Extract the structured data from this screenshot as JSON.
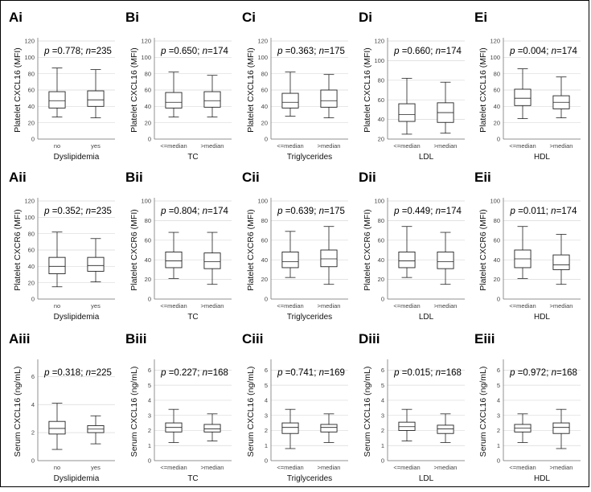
{
  "chart_data": [
    {
      "panel": "Ai",
      "type": "box",
      "ylabel": "Platelet CXCL16 (MFI)",
      "xlabel": "Dyslipidemia",
      "ylim": [
        0,
        120
      ],
      "yticks": [
        0,
        20,
        40,
        60,
        80,
        100,
        120
      ],
      "p": "0.778",
      "n": "235",
      "categories": [
        "no",
        "yes"
      ],
      "boxes": [
        {
          "min": 27,
          "q1": 38,
          "median": 47,
          "q3": 58,
          "max": 87
        },
        {
          "min": 26,
          "q1": 40,
          "median": 48,
          "q3": 59,
          "max": 85
        }
      ]
    },
    {
      "panel": "Bi",
      "type": "box",
      "ylabel": "Platelet CXCL16 (MFI)",
      "xlabel": "TC",
      "ylim": [
        0,
        120
      ],
      "yticks": [
        0,
        20,
        40,
        60,
        80,
        100,
        120
      ],
      "p": "0.650",
      "n": "174",
      "categories": [
        "<=median",
        ">median"
      ],
      "boxes": [
        {
          "min": 27,
          "q1": 38,
          "median": 45,
          "q3": 57,
          "max": 82
        },
        {
          "min": 27,
          "q1": 39,
          "median": 47,
          "q3": 58,
          "max": 78
        }
      ]
    },
    {
      "panel": "Ci",
      "type": "box",
      "ylabel": "Platelet CXCL16 (MFI)",
      "xlabel": "Triglycerides",
      "ylim": [
        0,
        120
      ],
      "yticks": [
        0,
        20,
        40,
        60,
        80,
        100,
        120
      ],
      "p": "0.363",
      "n": "175",
      "categories": [
        "<=median",
        ">median"
      ],
      "boxes": [
        {
          "min": 28,
          "q1": 38,
          "median": 45,
          "q3": 56,
          "max": 82
        },
        {
          "min": 26,
          "q1": 39,
          "median": 47,
          "q3": 60,
          "max": 79
        }
      ]
    },
    {
      "panel": "Di",
      "type": "box",
      "ylabel": "Platelet CXCL16 (MFI)",
      "xlabel": "LDL",
      "ylim": [
        20,
        120
      ],
      "yticks": [
        20,
        40,
        60,
        80,
        100,
        120
      ],
      "p": "0.660",
      "n": "174",
      "categories": [
        "<=median",
        ">median"
      ],
      "boxes": [
        {
          "min": 25,
          "q1": 38,
          "median": 45,
          "q3": 56,
          "max": 82
        },
        {
          "min": 26,
          "q1": 37,
          "median": 47,
          "q3": 57,
          "max": 78
        }
      ]
    },
    {
      "panel": "Ei",
      "type": "box",
      "ylabel": "Platelet CXCL16 (MFI)",
      "xlabel": "HDL",
      "ylim": [
        0,
        120
      ],
      "yticks": [
        0,
        20,
        40,
        60,
        80,
        100,
        120
      ],
      "p": "0.004",
      "n": "174",
      "categories": [
        "<=median",
        ">median"
      ],
      "boxes": [
        {
          "min": 25,
          "q1": 41,
          "median": 50,
          "q3": 61,
          "max": 86
        },
        {
          "min": 26,
          "q1": 37,
          "median": 45,
          "q3": 53,
          "max": 76
        }
      ]
    },
    {
      "panel": "Aii",
      "type": "box",
      "ylabel": "Platelet CXCR6 (MFI)",
      "xlabel": "Dyslipidemia",
      "ylim": [
        0,
        120
      ],
      "yticks": [
        0,
        20,
        40,
        60,
        80,
        100,
        120
      ],
      "p": "0.352",
      "n": "235",
      "categories": [
        "no",
        "yes"
      ],
      "boxes": [
        {
          "min": 15,
          "q1": 31,
          "median": 40,
          "q3": 51,
          "max": 82
        },
        {
          "min": 21,
          "q1": 34,
          "median": 41,
          "q3": 51,
          "max": 74
        }
      ]
    },
    {
      "panel": "Bii",
      "type": "box",
      "ylabel": "Platelet CXCR6 (MFI)",
      "xlabel": "TC",
      "ylim": [
        0,
        100
      ],
      "yticks": [
        0,
        20,
        40,
        60,
        80,
        100
      ],
      "p": "0.804",
      "n": "174",
      "categories": [
        "<=median",
        ">median"
      ],
      "boxes": [
        {
          "min": 21,
          "q1": 32,
          "median": 39,
          "q3": 48,
          "max": 68
        },
        {
          "min": 15,
          "q1": 31,
          "median": 38,
          "q3": 47,
          "max": 68
        }
      ]
    },
    {
      "panel": "Cii",
      "type": "box",
      "ylabel": "Platelet CXCR6 (MFI)",
      "xlabel": "Triglycerides",
      "ylim": [
        0,
        100
      ],
      "yticks": [
        0,
        20,
        40,
        60,
        80,
        100
      ],
      "p": "0.639",
      "n": "175",
      "categories": [
        "<=median",
        ">median"
      ],
      "boxes": [
        {
          "min": 22,
          "q1": 32,
          "median": 38,
          "q3": 48,
          "max": 69
        },
        {
          "min": 15,
          "q1": 33,
          "median": 41,
          "q3": 50,
          "max": 74
        }
      ]
    },
    {
      "panel": "Dii",
      "type": "box",
      "ylabel": "Platelet CXCR6 (MFI)",
      "xlabel": "LDL",
      "ylim": [
        0,
        100
      ],
      "yticks": [
        0,
        20,
        40,
        60,
        80,
        100
      ],
      "p": "0.449",
      "n": "174",
      "categories": [
        "<=median",
        ">median"
      ],
      "boxes": [
        {
          "min": 22,
          "q1": 32,
          "median": 39,
          "q3": 48,
          "max": 74
        },
        {
          "min": 15,
          "q1": 31,
          "median": 38,
          "q3": 48,
          "max": 68
        }
      ]
    },
    {
      "panel": "Eii",
      "type": "box",
      "ylabel": "Platelet CXCR6 (MFI)",
      "xlabel": "HDL",
      "ylim": [
        0,
        100
      ],
      "yticks": [
        0,
        20,
        40,
        60,
        80,
        100
      ],
      "p": "0.011",
      "n": "174",
      "categories": [
        "<=median",
        ">median"
      ],
      "boxes": [
        {
          "min": 21,
          "q1": 32,
          "median": 41,
          "q3": 50,
          "max": 74
        },
        {
          "min": 15,
          "q1": 30,
          "median": 35,
          "q3": 45,
          "max": 66
        }
      ]
    },
    {
      "panel": "Aiii",
      "type": "box",
      "ylabel": "Serum CXCL16 (ng/mL)",
      "xlabel": "Dyslipidemia",
      "ylim": [
        0,
        7
      ],
      "yticks": [
        0,
        2,
        4,
        6
      ],
      "p": "0.318",
      "n": "225",
      "categories": [
        "no",
        "yes"
      ],
      "boxes": [
        {
          "min": 0.8,
          "q1": 1.9,
          "median": 2.3,
          "q3": 2.8,
          "max": 4.1
        },
        {
          "min": 1.2,
          "q1": 2.0,
          "median": 2.25,
          "q3": 2.5,
          "max": 3.2
        }
      ]
    },
    {
      "panel": "Biii",
      "type": "box",
      "ylabel": "Serum CXCL16 (ng/mL)",
      "xlabel": "TC",
      "ylim": [
        0,
        6.5
      ],
      "yticks": [
        0,
        1,
        2,
        3,
        4,
        5,
        6
      ],
      "p": "0.227",
      "n": "168",
      "categories": [
        "<=median",
        ">median"
      ],
      "boxes": [
        {
          "min": 1.2,
          "q1": 1.9,
          "median": 2.2,
          "q3": 2.5,
          "max": 3.4
        },
        {
          "min": 1.3,
          "q1": 1.9,
          "median": 2.1,
          "q3": 2.4,
          "max": 3.1
        }
      ]
    },
    {
      "panel": "Ciii",
      "type": "box",
      "ylabel": "Serum CXCL16 (ng/mL)",
      "xlabel": "Triglycerides",
      "ylim": [
        0,
        6.5
      ],
      "yticks": [
        0,
        1,
        2,
        3,
        4,
        5,
        6
      ],
      "p": "0.741",
      "n": "169",
      "categories": [
        "<=median",
        ">median"
      ],
      "boxes": [
        {
          "min": 0.8,
          "q1": 1.8,
          "median": 2.2,
          "q3": 2.5,
          "max": 3.4
        },
        {
          "min": 1.2,
          "q1": 1.9,
          "median": 2.2,
          "q3": 2.4,
          "max": 3.1
        }
      ]
    },
    {
      "panel": "Diii",
      "type": "box",
      "ylabel": "Serum CXCL16 (ng/mL)",
      "xlabel": "LDL",
      "ylim": [
        0,
        6.5
      ],
      "yticks": [
        0,
        1,
        2,
        3,
        4,
        5,
        6
      ],
      "p": "0.015",
      "n": "168",
      "categories": [
        "<=median",
        ">median"
      ],
      "boxes": [
        {
          "min": 1.3,
          "q1": 2.0,
          "median": 2.25,
          "q3": 2.55,
          "max": 3.4
        },
        {
          "min": 1.2,
          "q1": 1.8,
          "median": 2.1,
          "q3": 2.35,
          "max": 3.1
        }
      ]
    },
    {
      "panel": "Eiii",
      "type": "box",
      "ylabel": "Serum CXCL16 (ng/mL)",
      "xlabel": "HDL",
      "ylim": [
        0,
        6.5
      ],
      "yticks": [
        0,
        1,
        2,
        3,
        4,
        5,
        6
      ],
      "p": "0.972",
      "n": "168",
      "categories": [
        "<=median",
        ">median"
      ],
      "boxes": [
        {
          "min": 1.2,
          "q1": 1.9,
          "median": 2.15,
          "q3": 2.4,
          "max": 3.1
        },
        {
          "min": 0.8,
          "q1": 1.8,
          "median": 2.2,
          "q3": 2.5,
          "max": 3.4
        }
      ]
    }
  ]
}
